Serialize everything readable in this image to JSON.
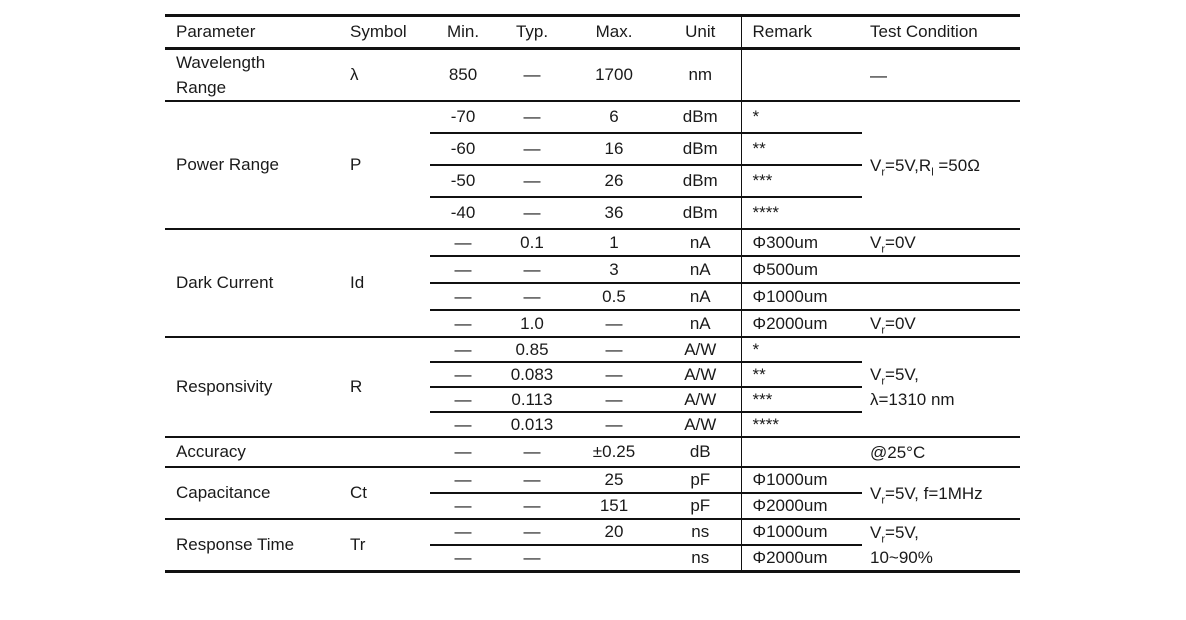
{
  "page": {
    "background_color": "#ffffff",
    "text_color": "#1a1a1a",
    "line_color": "#111111"
  },
  "table": {
    "headers": [
      "Parameter",
      "Symbol",
      "Min.",
      "Typ.",
      "Max.",
      "Unit",
      "Remark",
      "Test Condition"
    ],
    "groups": [
      {
        "parameter": "Wavelength Range",
        "symbol": "λ",
        "rows": [
          {
            "min": "850",
            "typ": "—",
            "max": "1700",
            "unit": "nm",
            "remark": ""
          }
        ],
        "test_condition": {
          "span": true,
          "lines": [
            [
              {
                "t": "—"
              }
            ]
          ]
        }
      },
      {
        "parameter": "Power Range",
        "symbol": "P",
        "rows": [
          {
            "min": "-70",
            "typ": "—",
            "max": "6",
            "unit": "dBm",
            "remark": "*"
          },
          {
            "min": "-60",
            "typ": "—",
            "max": "16",
            "unit": "dBm",
            "remark": "**"
          },
          {
            "min": "-50",
            "typ": "—",
            "max": "26",
            "unit": "dBm",
            "remark": "***"
          },
          {
            "min": "-40",
            "typ": "—",
            "max": "36",
            "unit": "dBm",
            "remark": "****"
          }
        ],
        "test_condition": {
          "span": true,
          "lines": [
            [
              {
                "t": "V"
              },
              {
                "sub": "r"
              },
              {
                "t": "=5V,R"
              },
              {
                "sub": "l"
              },
              {
                "t": " =50Ω"
              }
            ]
          ]
        }
      },
      {
        "parameter": "Dark Current",
        "symbol": "Id",
        "rows": [
          {
            "min": "—",
            "typ": "0.1",
            "max": "1",
            "unit": "nA",
            "remark": "Φ300um",
            "test": [
              [
                {
                  "t": "V"
                },
                {
                  "sub": "r"
                },
                {
                  "t": "=0V"
                }
              ]
            ]
          },
          {
            "min": "—",
            "typ": "—",
            "max": "3",
            "unit": "nA",
            "remark": "Φ500um",
            "test": []
          },
          {
            "min": "—",
            "typ": "—",
            "max": "0.5",
            "unit": "nA",
            "remark": "Φ1000um",
            "test": []
          },
          {
            "min": "—",
            "typ": "1.0",
            "max": "—",
            "unit": "nA",
            "remark": "Φ2000um",
            "test": [
              [
                {
                  "t": "V"
                },
                {
                  "sub": "r"
                },
                {
                  "t": "=0V"
                }
              ]
            ]
          }
        ],
        "test_condition": {
          "span": false
        }
      },
      {
        "parameter": "Responsivity",
        "symbol": "R",
        "rows": [
          {
            "min": "—",
            "typ": "0.85",
            "max": "—",
            "unit": "A/W",
            "remark": "*"
          },
          {
            "min": "—",
            "typ": "0.083",
            "max": "—",
            "unit": "A/W",
            "remark": "**"
          },
          {
            "min": "—",
            "typ": "0.113",
            "max": "—",
            "unit": "A/W",
            "remark": "***"
          },
          {
            "min": "—",
            "typ": "0.013",
            "max": "—",
            "unit": "A/W",
            "remark": "****"
          }
        ],
        "test_condition": {
          "span": true,
          "lines": [
            [
              {
                "t": "V"
              },
              {
                "sub": "r"
              },
              {
                "t": "=5V,"
              }
            ],
            [
              {
                "t": "λ=1310 nm"
              }
            ]
          ]
        }
      },
      {
        "parameter": "Accuracy",
        "symbol": "",
        "rows": [
          {
            "min": "—",
            "typ": "—",
            "max": "±0.25",
            "unit": "dB",
            "remark": ""
          }
        ],
        "test_condition": {
          "span": true,
          "lines": [
            [
              {
                "t": "@25°C"
              }
            ]
          ]
        }
      },
      {
        "parameter": "Capacitance",
        "symbol": "Ct",
        "rows": [
          {
            "min": "—",
            "typ": "—",
            "max": "25",
            "unit": "pF",
            "remark": "Φ1000um"
          },
          {
            "min": "—",
            "typ": "—",
            "max": "151",
            "unit": "pF",
            "remark": "Φ2000um"
          }
        ],
        "test_condition": {
          "span": true,
          "lines": [
            [
              {
                "t": "V"
              },
              {
                "sub": "r"
              },
              {
                "t": "=5V, f=1MHz"
              }
            ]
          ]
        }
      },
      {
        "parameter": "Response Time",
        "symbol": "Tr",
        "rows": [
          {
            "min": "—",
            "typ": "—",
            "max": "20",
            "unit": "ns",
            "remark": "Φ1000um"
          },
          {
            "min": "—",
            "typ": "—",
            "max": "",
            "unit": "ns",
            "remark": "Φ2000um"
          }
        ],
        "test_condition": {
          "span": true,
          "lines": [
            [
              {
                "t": "V"
              },
              {
                "sub": "r"
              },
              {
                "t": "=5V,"
              }
            ],
            [
              {
                "t": "10~90%"
              }
            ]
          ]
        }
      }
    ]
  }
}
